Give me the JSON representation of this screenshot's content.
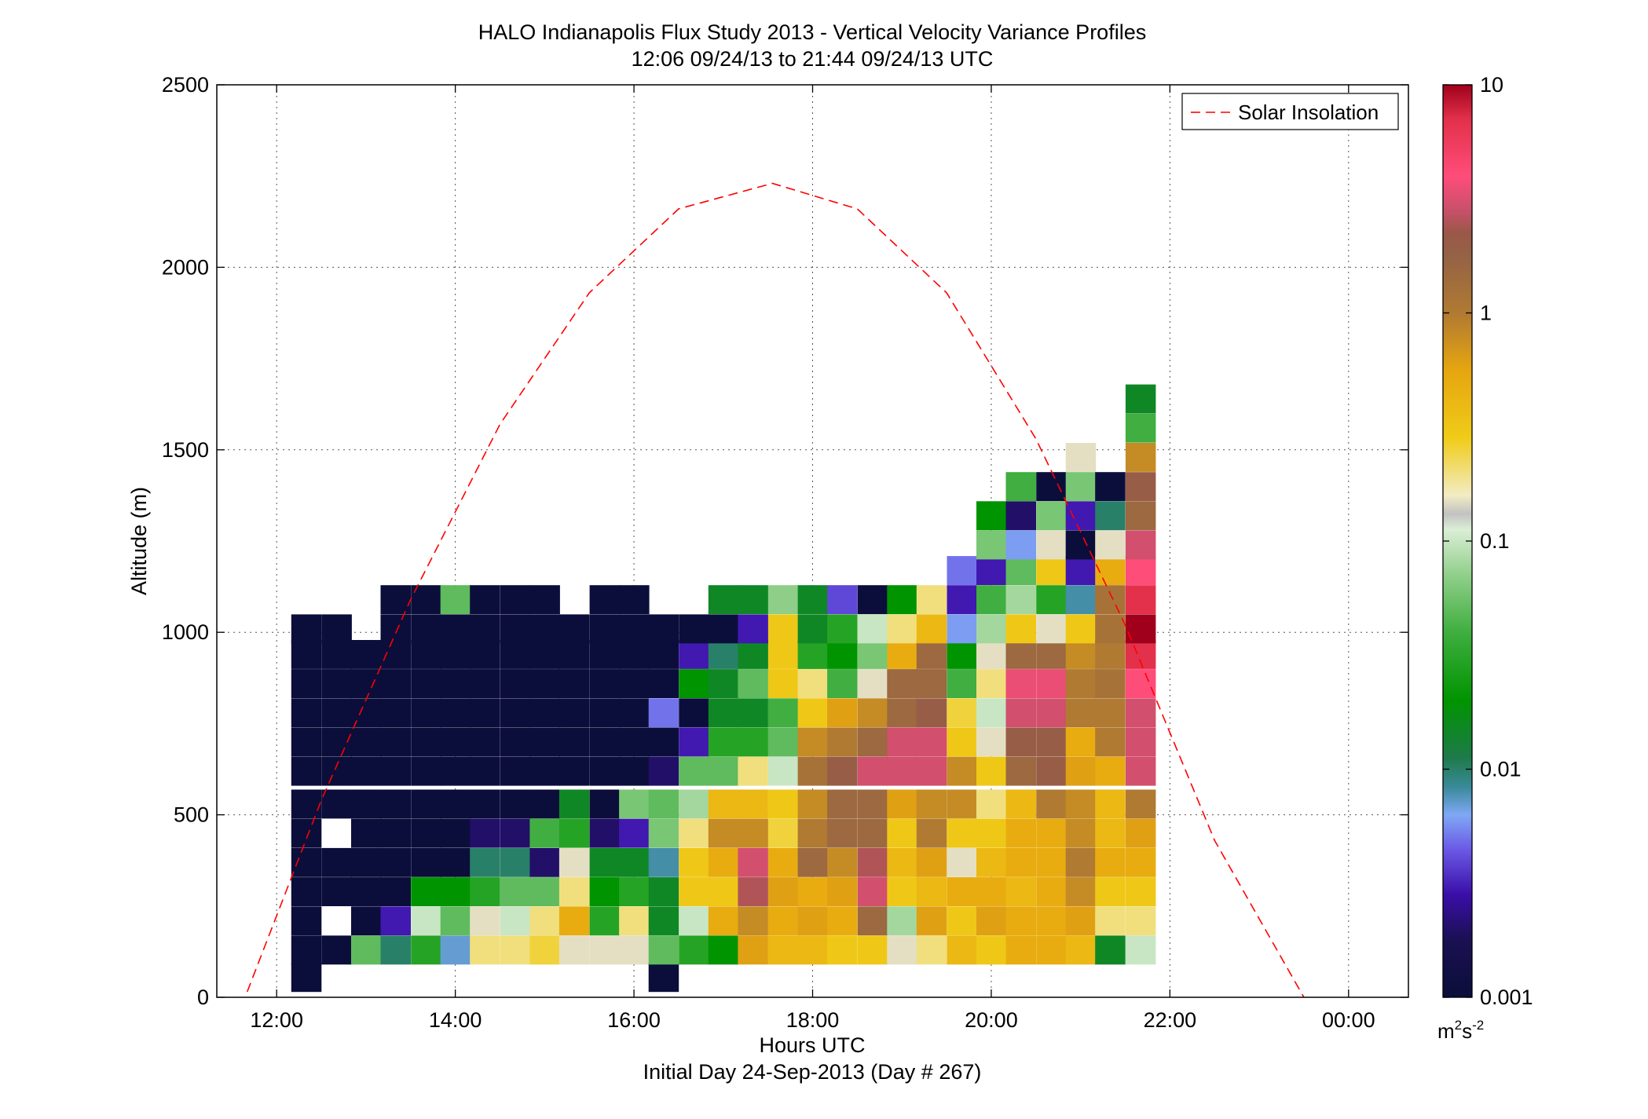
{
  "chart_data": {
    "type": "heatmap",
    "title": "HALO Indianapolis Flux Study 2013 - Vertical Velocity Variance Profiles",
    "subtitle": "12:06 09/24/13 to 21:44 09/24/13  UTC",
    "xlabel": "Hours UTC",
    "xlabel2": "Initial Day 24-Sep-2013 (Day # 267)",
    "ylabel": "Altitude (m)",
    "xlim": [
      11.33,
      24.67
    ],
    "ylim": [
      0,
      2500
    ],
    "x_tick_values": [
      12,
      14,
      16,
      18,
      20,
      22,
      24
    ],
    "x_tick_labels": [
      "12:00",
      "14:00",
      "16:00",
      "18:00",
      "20:00",
      "22:00",
      "00:00"
    ],
    "y_tick_values": [
      0,
      500,
      1000,
      1500,
      2000,
      2500
    ],
    "y_tick_labels": [
      "0",
      "500",
      "1000",
      "1500",
      "2000",
      "2500"
    ],
    "grid": true,
    "legend": {
      "position": "top-right",
      "entries": [
        {
          "name": "Solar Insolation",
          "style": "dashed",
          "color": "#ff0000"
        }
      ]
    },
    "colorbar": {
      "scale": "log",
      "range": [
        0.001,
        10
      ],
      "tick_values": [
        0.001,
        0.01,
        0.1,
        1,
        10
      ],
      "tick_labels": [
        "0.001",
        "0.01",
        "0.1",
        "1",
        "10"
      ],
      "unit_base": "m",
      "unit_exp1": "2",
      "unit_mid": "s",
      "unit_exp2": "-2"
    },
    "solar_insolation": {
      "x": [
        11.67,
        12.5,
        13.5,
        14.5,
        15.5,
        16.5,
        17.55,
        18.5,
        19.5,
        20.5,
        21.5,
        22.5,
        23.5
      ],
      "y": [
        15,
        540,
        1090,
        1570,
        1930,
        2160,
        2230,
        2160,
        1930,
        1530,
        1020,
        430,
        0
      ]
    },
    "profiles": [
      {
        "time": 12.33,
        "altitudes": [
          55,
          130,
          210,
          290,
          370,
          450,
          530,
          620,
          700,
          780,
          860,
          940,
          1010
        ],
        "values": [
          0.001,
          0.001,
          0.001,
          0.001,
          0.001,
          0.001,
          0.001,
          0.001,
          0.001,
          0.001,
          0.001,
          0.001,
          0.001
        ]
      },
      {
        "time": 12.67,
        "altitudes": [
          130,
          290,
          370,
          530,
          620,
          700,
          780,
          860,
          940,
          1010
        ],
        "values": [
          0.001,
          0.001,
          0.001,
          0.001,
          0.001,
          0.001,
          0.001,
          0.001,
          0.001,
          0.001
        ]
      },
      {
        "time": 13.0,
        "altitudes": [
          130,
          210,
          290,
          370,
          450,
          530,
          620,
          700,
          780,
          860,
          940
        ],
        "values": [
          0.05,
          0.001,
          0.001,
          0.001,
          0.001,
          0.001,
          0.001,
          0.001,
          0.001,
          0.001,
          0.001
        ]
      },
      {
        "time": 13.33,
        "altitudes": [
          130,
          210,
          290,
          370,
          450,
          530,
          620,
          700,
          780,
          860,
          940,
          1010,
          1090
        ],
        "values": [
          0.01,
          0.003,
          0.001,
          0.001,
          0.001,
          0.001,
          0.001,
          0.001,
          0.001,
          0.001,
          0.001,
          0.001,
          0.001
        ]
      },
      {
        "time": 13.67,
        "altitudes": [
          130,
          210,
          290,
          370,
          450,
          530,
          620,
          700,
          780,
          860,
          940,
          1010,
          1090
        ],
        "values": [
          0.03,
          0.1,
          0.02,
          0.001,
          0.001,
          0.001,
          0.001,
          0.001,
          0.001,
          0.001,
          0.001,
          0.001,
          0.001
        ]
      },
      {
        "time": 14.0,
        "altitudes": [
          130,
          210,
          290,
          370,
          450,
          530,
          620,
          700,
          780,
          860,
          940,
          1010,
          1090
        ],
        "values": [
          0.007,
          0.05,
          0.02,
          0.001,
          0.001,
          0.001,
          0.001,
          0.001,
          0.001,
          0.001,
          0.001,
          0.001,
          0.05
        ]
      },
      {
        "time": 14.33,
        "altitudes": [
          130,
          210,
          290,
          370,
          450,
          530,
          620,
          700,
          780,
          860,
          940,
          1010,
          1090
        ],
        "values": [
          0.2,
          0.15,
          0.03,
          0.01,
          0.002,
          0.001,
          0.001,
          0.001,
          0.001,
          0.001,
          0.001,
          0.001,
          0.001
        ]
      },
      {
        "time": 14.67,
        "altitudes": [
          130,
          210,
          290,
          370,
          450,
          530,
          620,
          700,
          780,
          860,
          940,
          1010,
          1090
        ],
        "values": [
          0.2,
          0.1,
          0.05,
          0.01,
          0.002,
          0.001,
          0.001,
          0.001,
          0.001,
          0.001,
          0.001,
          0.001,
          0.001
        ]
      },
      {
        "time": 15.0,
        "altitudes": [
          130,
          210,
          290,
          370,
          450,
          530,
          620,
          700,
          780,
          860,
          940,
          1010,
          1090
        ],
        "values": [
          0.25,
          0.2,
          0.05,
          0.002,
          0.04,
          0.001,
          0.001,
          0.001,
          0.001,
          0.001,
          0.001,
          0.001,
          0.001
        ]
      },
      {
        "time": 15.33,
        "altitudes": [
          130,
          210,
          290,
          370,
          450,
          530,
          620,
          700,
          780,
          860,
          940,
          1010
        ],
        "values": [
          0.15,
          0.5,
          0.2,
          0.15,
          0.03,
          0.015,
          0.001,
          0.001,
          0.001,
          0.001,
          0.001,
          0.001
        ]
      },
      {
        "time": 15.67,
        "altitudes": [
          130,
          210,
          290,
          370,
          450,
          530,
          620,
          700,
          780,
          860,
          940,
          1010,
          1090
        ],
        "values": [
          0.15,
          0.03,
          0.02,
          0.015,
          0.002,
          0.001,
          0.001,
          0.001,
          0.001,
          0.001,
          0.001,
          0.001,
          0.001
        ]
      },
      {
        "time": 16.0,
        "altitudes": [
          130,
          210,
          290,
          370,
          450,
          530,
          620,
          700,
          780,
          860,
          940,
          1010,
          1090
        ],
        "values": [
          0.15,
          0.2,
          0.03,
          0.015,
          0.003,
          0.06,
          0.001,
          0.001,
          0.001,
          0.001,
          0.001,
          0.001,
          0.001
        ]
      },
      {
        "time": 16.33,
        "altitudes": [
          55,
          130,
          210,
          290,
          370,
          450,
          530,
          620,
          700,
          780,
          860,
          940,
          1010
        ],
        "values": [
          0.001,
          0.05,
          0.015,
          0.015,
          0.008,
          0.06,
          0.05,
          0.002,
          0.001,
          0.005,
          0.001,
          0.001,
          0.001
        ]
      },
      {
        "time": 16.67,
        "altitudes": [
          130,
          210,
          290,
          370,
          450,
          530,
          620,
          700,
          780,
          860,
          940,
          1010
        ],
        "values": [
          0.03,
          0.1,
          0.3,
          0.3,
          0.2,
          0.08,
          0.05,
          0.003,
          0.001,
          0.02,
          0.003,
          0.001
        ]
      },
      {
        "time": 17.0,
        "altitudes": [
          130,
          210,
          290,
          370,
          450,
          530,
          620,
          700,
          780,
          860,
          940,
          1010,
          1090
        ],
        "values": [
          0.02,
          0.5,
          0.3,
          0.5,
          0.8,
          0.4,
          0.05,
          0.03,
          0.015,
          0.015,
          0.01,
          0.001,
          0.015
        ]
      },
      {
        "time": 17.33,
        "altitudes": [
          130,
          210,
          290,
          370,
          450,
          530,
          620,
          700,
          780,
          860,
          940,
          1010,
          1090
        ],
        "values": [
          0.6,
          0.8,
          2.5,
          3.0,
          0.8,
          0.4,
          0.2,
          0.03,
          0.015,
          0.05,
          0.015,
          0.003,
          0.015
        ]
      },
      {
        "time": 17.67,
        "altitudes": [
          130,
          210,
          290,
          370,
          450,
          530,
          620,
          700,
          780,
          860,
          940,
          1010,
          1090
        ],
        "values": [
          0.4,
          0.5,
          0.6,
          0.5,
          0.25,
          0.3,
          0.1,
          0.05,
          0.04,
          0.3,
          0.3,
          0.3,
          0.07
        ]
      },
      {
        "time": 18.0,
        "altitudes": [
          130,
          210,
          290,
          370,
          450,
          530,
          620,
          700,
          780,
          860,
          940,
          1010,
          1090
        ],
        "values": [
          0.4,
          0.6,
          0.5,
          1.5,
          1.0,
          0.8,
          1.2,
          0.8,
          0.3,
          0.2,
          0.03,
          0.015,
          0.015
        ]
      },
      {
        "time": 18.33,
        "altitudes": [
          130,
          210,
          290,
          370,
          450,
          530,
          620,
          700,
          780,
          860,
          940,
          1010,
          1090
        ],
        "values": [
          0.3,
          0.5,
          0.6,
          0.8,
          1.5,
          1.5,
          2.0,
          1.0,
          0.6,
          0.04,
          0.02,
          0.03,
          0.004
        ]
      },
      {
        "time": 18.67,
        "altitudes": [
          130,
          210,
          290,
          370,
          450,
          530,
          620,
          700,
          780,
          860,
          940,
          1010,
          1090
        ],
        "values": [
          0.3,
          1.5,
          3.0,
          2.5,
          1.5,
          1.5,
          3.0,
          1.5,
          0.8,
          0.15,
          0.06,
          0.1,
          0.001
        ]
      },
      {
        "time": 19.0,
        "altitudes": [
          130,
          210,
          290,
          370,
          450,
          530,
          620,
          700,
          780,
          860,
          940,
          1010,
          1090
        ],
        "values": [
          0.15,
          0.08,
          0.3,
          0.4,
          0.3,
          0.6,
          3.0,
          3.0,
          1.5,
          1.5,
          0.5,
          0.2,
          0.02
        ]
      },
      {
        "time": 19.33,
        "altitudes": [
          130,
          210,
          290,
          370,
          450,
          530,
          620,
          700,
          780,
          860,
          940,
          1010,
          1090
        ],
        "values": [
          0.2,
          0.6,
          0.4,
          0.6,
          1.0,
          0.8,
          3.0,
          3.0,
          2.0,
          1.5,
          1.5,
          0.4,
          0.2
        ]
      },
      {
        "time": 19.67,
        "altitudes": [
          130,
          210,
          290,
          370,
          450,
          530,
          620,
          700,
          780,
          860,
          940,
          1010,
          1090,
          1170
        ],
        "values": [
          0.4,
          0.3,
          0.5,
          0.15,
          0.3,
          0.8,
          0.8,
          0.3,
          0.25,
          0.04,
          0.02,
          0.006,
          0.003,
          0.005
        ]
      },
      {
        "time": 20.0,
        "altitudes": [
          130,
          210,
          290,
          370,
          450,
          530,
          620,
          700,
          780,
          860,
          940,
          1010,
          1090,
          1170,
          1240,
          1320
        ],
        "values": [
          0.3,
          0.6,
          0.5,
          0.4,
          0.3,
          0.2,
          0.3,
          0.15,
          0.1,
          0.2,
          0.15,
          0.08,
          0.04,
          0.003,
          0.06,
          0.02
        ]
      },
      {
        "time": 20.33,
        "altitudes": [
          130,
          210,
          290,
          370,
          450,
          530,
          620,
          700,
          780,
          860,
          940,
          1010,
          1090,
          1170,
          1240,
          1320,
          1400
        ],
        "values": [
          0.5,
          0.5,
          0.4,
          0.5,
          0.5,
          0.4,
          1.5,
          2.0,
          3.0,
          3.5,
          1.5,
          0.3,
          0.08,
          0.05,
          0.006,
          0.002,
          0.04
        ]
      },
      {
        "time": 20.67,
        "altitudes": [
          130,
          210,
          290,
          370,
          450,
          530,
          620,
          700,
          780,
          860,
          940,
          1010,
          1090,
          1170,
          1240,
          1320,
          1400
        ],
        "values": [
          0.5,
          0.5,
          0.5,
          0.5,
          0.5,
          1.0,
          2.0,
          2.0,
          3.0,
          3.5,
          1.5,
          0.15,
          0.03,
          0.3,
          0.15,
          0.06,
          0.001
        ]
      },
      {
        "time": 21.0,
        "altitudes": [
          130,
          210,
          290,
          370,
          450,
          530,
          620,
          700,
          780,
          860,
          940,
          1010,
          1090,
          1170,
          1240,
          1320,
          1400,
          1480
        ],
        "values": [
          0.4,
          0.6,
          0.8,
          1.0,
          0.8,
          0.8,
          0.6,
          0.5,
          1.0,
          1.0,
          0.8,
          0.3,
          0.008,
          0.003,
          0.001,
          0.003,
          0.06,
          0.15
        ]
      },
      {
        "time": 21.33,
        "altitudes": [
          130,
          210,
          290,
          370,
          450,
          530,
          620,
          700,
          780,
          860,
          940,
          1010,
          1090,
          1170,
          1240,
          1320,
          1400
        ],
        "values": [
          0.015,
          0.2,
          0.3,
          0.5,
          0.4,
          0.4,
          0.5,
          1.0,
          1.0,
          1.2,
          1.0,
          1.2,
          1.2,
          0.5,
          0.15,
          0.01,
          0.001
        ]
      },
      {
        "time": 21.67,
        "altitudes": [
          130,
          210,
          290,
          370,
          450,
          530,
          620,
          700,
          780,
          860,
          940,
          1010,
          1090,
          1170,
          1240,
          1320,
          1400,
          1480,
          1560,
          1640
        ],
        "values": [
          0.1,
          0.2,
          0.3,
          0.5,
          0.6,
          1.0,
          3.0,
          3.0,
          3.0,
          4.0,
          7.0,
          10.0,
          7.0,
          4.0,
          3.0,
          1.5,
          2.0,
          0.8,
          0.04,
          0.015
        ]
      }
    ]
  }
}
